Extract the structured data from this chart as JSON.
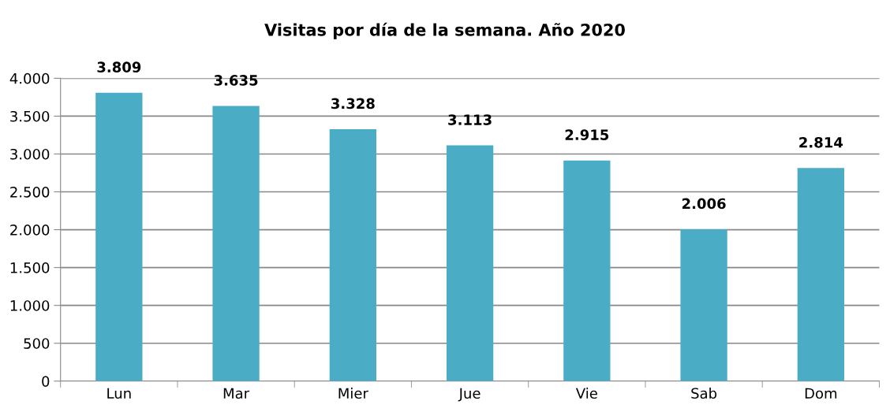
{
  "chart_data": {
    "type": "bar",
    "title": "Visitas por día de la semana. Año 2020",
    "categories": [
      "Lun",
      "Mar",
      "Mier",
      "Jue",
      "Vie",
      "Sab",
      "Dom"
    ],
    "series": [
      {
        "color": "#4bacc6",
        "values": [
          3809,
          3635,
          3328,
          3113,
          2915,
          2006,
          2814
        ],
        "value_labels": [
          "3.809",
          "3.635",
          "3.328",
          "3.113",
          "2.915",
          "2.006",
          "2.814"
        ]
      }
    ],
    "ylim": [
      0,
      4000
    ],
    "yticks": [
      0,
      500,
      {
        "value": 1000,
        "label": "1.000"
      },
      {
        "value": 1500,
        "label": "1.500"
      },
      {
        "value": 2000,
        "label": "2.000"
      },
      {
        "value": 2500,
        "label": "2.500"
      },
      {
        "value": 3000,
        "label": "3.000"
      },
      {
        "value": 3500,
        "label": "3.500"
      },
      {
        "value": 4000,
        "label": "4.000"
      }
    ],
    "grid": "y",
    "legend": false
  }
}
